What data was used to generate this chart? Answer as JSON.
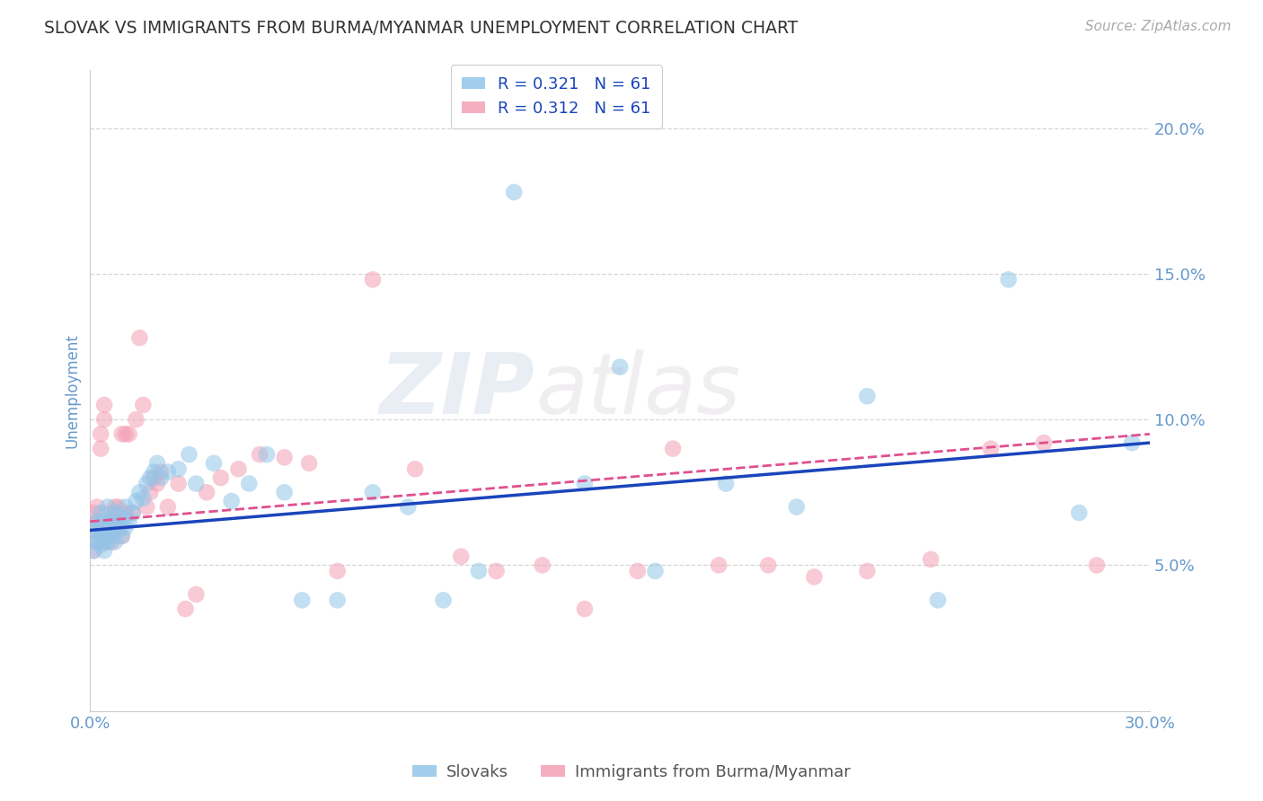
{
  "title": "SLOVAK VS IMMIGRANTS FROM BURMA/MYANMAR UNEMPLOYMENT CORRELATION CHART",
  "source": "Source: ZipAtlas.com",
  "ylabel": "Unemployment",
  "xlim": [
    0.0,
    0.3
  ],
  "ylim": [
    0.0,
    0.22
  ],
  "xticks": [
    0.0,
    0.05,
    0.1,
    0.15,
    0.2,
    0.25,
    0.3
  ],
  "xtick_labels": [
    "0.0%",
    "",
    "",
    "",
    "",
    "",
    "30.0%"
  ],
  "yticks": [
    0.05,
    0.1,
    0.15,
    0.2
  ],
  "ytick_labels": [
    "5.0%",
    "10.0%",
    "15.0%",
    "20.0%"
  ],
  "blue_color": "#92c5e8",
  "pink_color": "#f4a0b5",
  "blue_line_color": "#1a44bb",
  "pink_line_color": "#e05090",
  "legend_label1": "Slovaks",
  "legend_label2": "Immigrants from Burma/Myanmar",
  "watermark_zip": "ZIP",
  "watermark_atlas": "atlas",
  "blue_scatter_x": [
    0.001,
    0.001,
    0.002,
    0.002,
    0.002,
    0.003,
    0.003,
    0.003,
    0.004,
    0.004,
    0.004,
    0.005,
    0.005,
    0.005,
    0.006,
    0.006,
    0.007,
    0.007,
    0.007,
    0.008,
    0.008,
    0.009,
    0.009,
    0.01,
    0.01,
    0.011,
    0.012,
    0.013,
    0.014,
    0.015,
    0.016,
    0.017,
    0.018,
    0.019,
    0.02,
    0.022,
    0.025,
    0.028,
    0.03,
    0.035,
    0.04,
    0.045,
    0.05,
    0.055,
    0.06,
    0.07,
    0.08,
    0.09,
    0.1,
    0.11,
    0.12,
    0.14,
    0.15,
    0.16,
    0.18,
    0.2,
    0.22,
    0.24,
    0.26,
    0.28,
    0.295
  ],
  "blue_scatter_y": [
    0.062,
    0.055,
    0.065,
    0.058,
    0.06,
    0.063,
    0.057,
    0.068,
    0.06,
    0.055,
    0.065,
    0.062,
    0.058,
    0.07,
    0.06,
    0.065,
    0.063,
    0.068,
    0.058,
    0.062,
    0.067,
    0.06,
    0.065,
    0.063,
    0.07,
    0.065,
    0.068,
    0.072,
    0.075,
    0.073,
    0.078,
    0.08,
    0.082,
    0.085,
    0.08,
    0.082,
    0.083,
    0.088,
    0.078,
    0.085,
    0.072,
    0.078,
    0.088,
    0.075,
    0.038,
    0.038,
    0.075,
    0.07,
    0.038,
    0.048,
    0.178,
    0.078,
    0.118,
    0.048,
    0.078,
    0.07,
    0.108,
    0.038,
    0.148,
    0.068,
    0.092
  ],
  "pink_scatter_x": [
    0.001,
    0.001,
    0.001,
    0.002,
    0.002,
    0.002,
    0.003,
    0.003,
    0.003,
    0.004,
    0.004,
    0.004,
    0.005,
    0.005,
    0.006,
    0.006,
    0.007,
    0.007,
    0.008,
    0.008,
    0.009,
    0.009,
    0.01,
    0.01,
    0.011,
    0.012,
    0.013,
    0.014,
    0.015,
    0.016,
    0.017,
    0.018,
    0.019,
    0.02,
    0.022,
    0.025,
    0.027,
    0.03,
    0.033,
    0.037,
    0.042,
    0.048,
    0.055,
    0.062,
    0.07,
    0.08,
    0.092,
    0.105,
    0.115,
    0.128,
    0.14,
    0.155,
    0.165,
    0.178,
    0.192,
    0.205,
    0.22,
    0.238,
    0.255,
    0.27,
    0.285
  ],
  "pink_scatter_y": [
    0.062,
    0.068,
    0.055,
    0.065,
    0.058,
    0.07,
    0.09,
    0.095,
    0.06,
    0.1,
    0.105,
    0.058,
    0.065,
    0.06,
    0.068,
    0.058,
    0.07,
    0.062,
    0.07,
    0.065,
    0.095,
    0.06,
    0.095,
    0.068,
    0.095,
    0.068,
    0.1,
    0.128,
    0.105,
    0.07,
    0.075,
    0.08,
    0.078,
    0.082,
    0.07,
    0.078,
    0.035,
    0.04,
    0.075,
    0.08,
    0.083,
    0.088,
    0.087,
    0.085,
    0.048,
    0.148,
    0.083,
    0.053,
    0.048,
    0.05,
    0.035,
    0.048,
    0.09,
    0.05,
    0.05,
    0.046,
    0.048,
    0.052,
    0.09,
    0.092,
    0.05
  ],
  "blue_trend_x": [
    0.0,
    0.3
  ],
  "blue_trend_y": [
    0.062,
    0.092
  ],
  "pink_trend_x": [
    0.0,
    0.3
  ],
  "pink_trend_y": [
    0.065,
    0.095
  ],
  "background_color": "#ffffff",
  "grid_color": "#cccccc",
  "title_color": "#333333",
  "axis_label_color": "#6699cc",
  "tick_color": "#6699cc"
}
